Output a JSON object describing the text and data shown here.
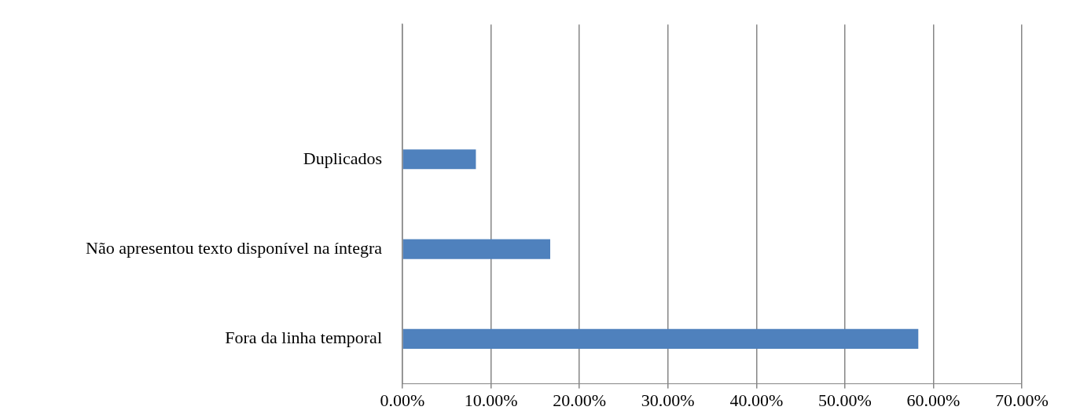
{
  "chart_data": {
    "type": "bar",
    "orientation": "horizontal",
    "categories": [
      null,
      "Duplicados",
      "Não apresentou texto disponível na íntegra",
      "Fora da linha temporal"
    ],
    "values": [
      null,
      8.3,
      16.7,
      58.3
    ],
    "color": "#4f81bd",
    "xlim": [
      0,
      70
    ],
    "xticks": [
      {
        "value": 0,
        "label": "0.00%"
      },
      {
        "value": 10,
        "label": "10.00%"
      },
      {
        "value": 20,
        "label": "20.00%"
      },
      {
        "value": 30,
        "label": "30.00%"
      },
      {
        "value": 40,
        "label": "40.00%"
      },
      {
        "value": 50,
        "label": "50.00%"
      },
      {
        "value": 60,
        "label": "60.00%"
      },
      {
        "value": 70,
        "label": "70.00%"
      }
    ],
    "grid": "x",
    "legend": false
  }
}
